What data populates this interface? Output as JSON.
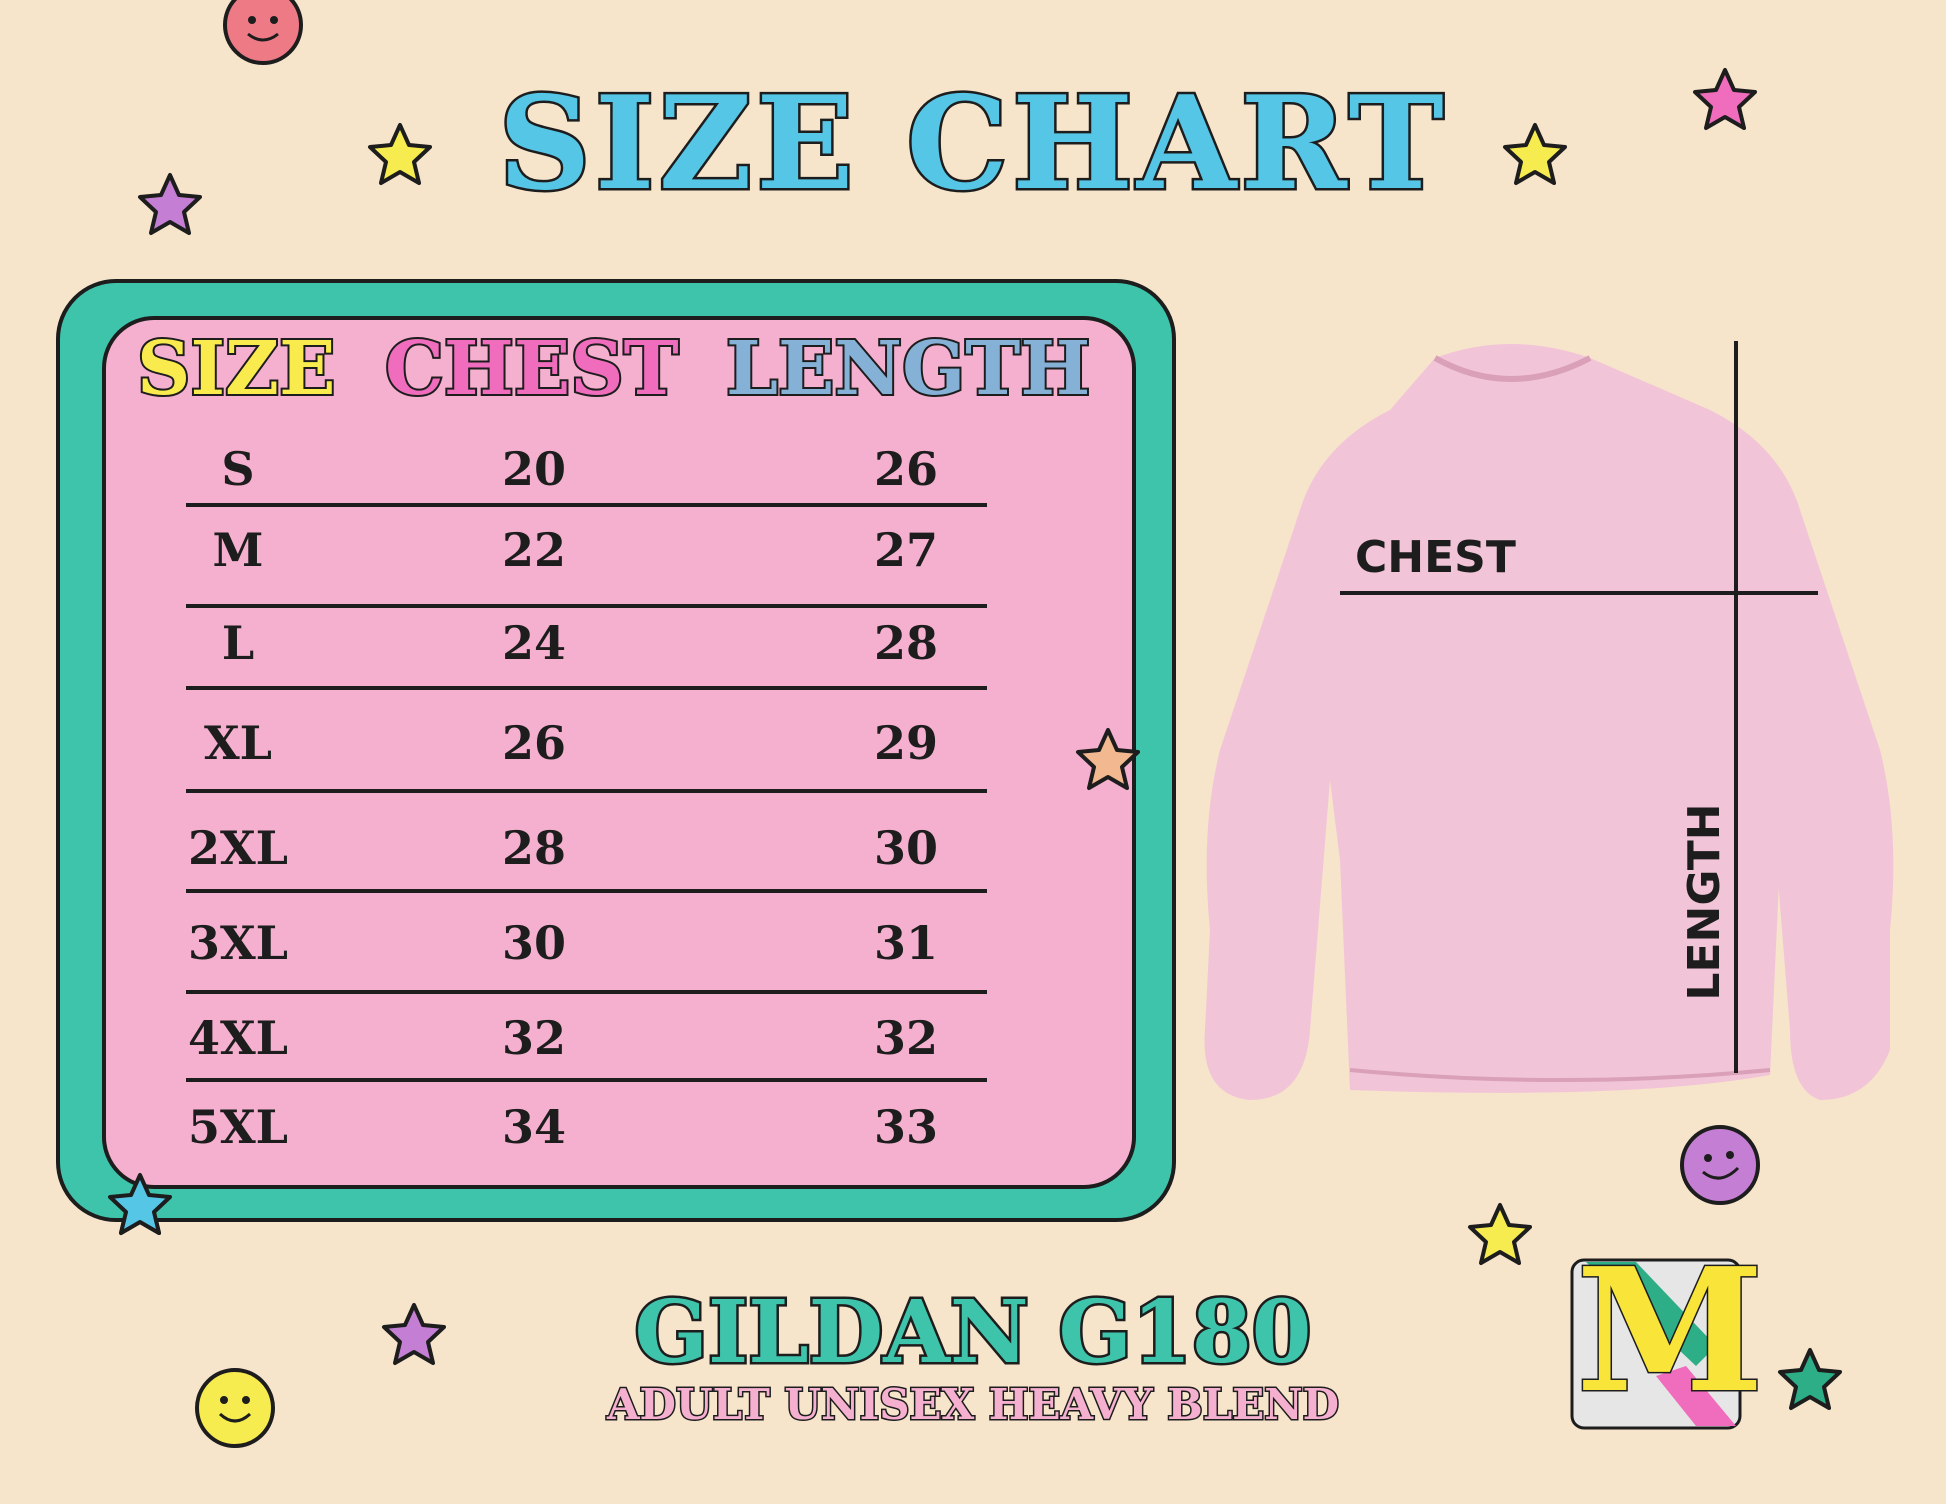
{
  "title": "SIZE CHART",
  "table": {
    "headers": {
      "size": "SIZE",
      "chest": "CHEST",
      "length": "LENGTH"
    },
    "header_colors": {
      "size": "#f9eb4d",
      "chest": "#f06cbc",
      "length": "#86b1d6"
    },
    "rows": [
      {
        "size": "S",
        "chest": "20",
        "length": "26"
      },
      {
        "size": "M",
        "chest": "22",
        "length": "27"
      },
      {
        "size": "L",
        "chest": "24",
        "length": "28"
      },
      {
        "size": "XL",
        "chest": "26",
        "length": "29"
      },
      {
        "size": "2XL",
        "chest": "28",
        "length": "30"
      },
      {
        "size": "3XL",
        "chest": "30",
        "length": "31"
      },
      {
        "size": "4XL",
        "chest": "32",
        "length": "32"
      },
      {
        "size": "5XL",
        "chest": "34",
        "length": "33"
      }
    ]
  },
  "garment": {
    "chest_label": "CHEST",
    "length_label": "LENGTH",
    "color": "#f2c4d8"
  },
  "product": {
    "name": "GILDAN G180",
    "description": "ADULT UNISEX HEAVY BLEND"
  },
  "logo": {
    "letter": "M"
  },
  "colors": {
    "background": "#f6e4cb",
    "title": "#56c6e6",
    "frame": "#3fc4ac",
    "panel": "#f5b0cf"
  }
}
